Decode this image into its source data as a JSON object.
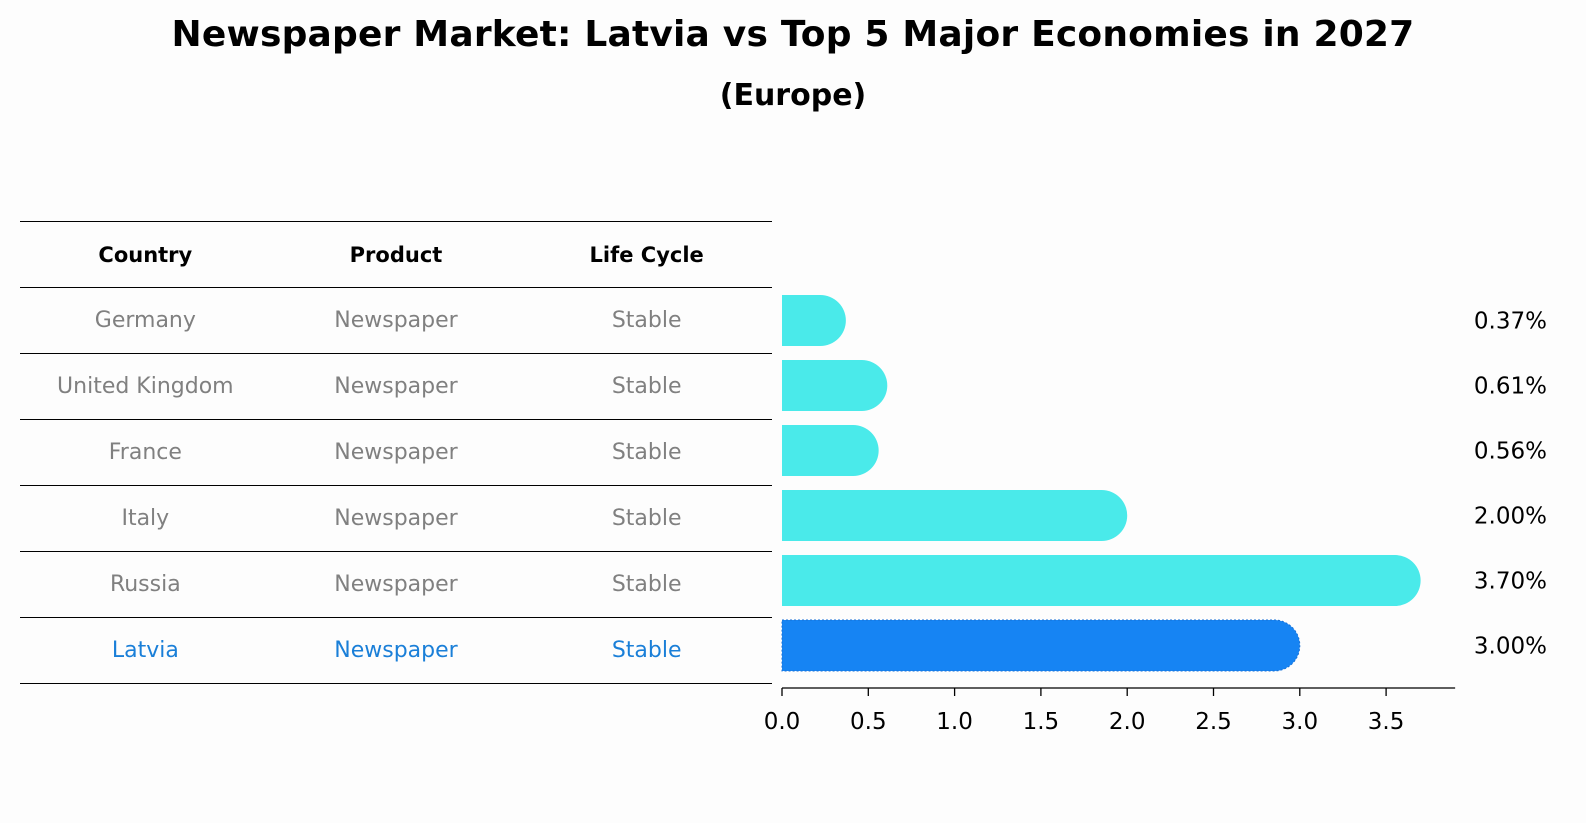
{
  "title": "Newspaper Market: Latvia vs Top 5 Major Economies in 2027",
  "subtitle": "(Europe)",
  "table": {
    "headers": [
      "Country",
      "Product",
      "Life Cycle"
    ],
    "rows": [
      {
        "country": "Germany",
        "product": "Newspaper",
        "life_cycle": "Stable"
      },
      {
        "country": "United Kingdom",
        "product": "Newspaper",
        "life_cycle": "Stable"
      },
      {
        "country": "France",
        "product": "Newspaper",
        "life_cycle": "Stable"
      },
      {
        "country": "Italy",
        "product": "Newspaper",
        "life_cycle": "Stable"
      },
      {
        "country": "Russia",
        "product": "Newspaper",
        "life_cycle": "Stable"
      },
      {
        "country": "Latvia",
        "product": "Newspaper",
        "life_cycle": "Stable"
      }
    ],
    "highlight_row": "Latvia"
  },
  "colors": {
    "bar": "#4aeaea",
    "highlight_bar": "#1684f3",
    "table_text": "#808080",
    "highlight_text": "#1a7fd8"
  },
  "chart_data": {
    "type": "bar",
    "orientation": "horizontal",
    "categories": [
      "Germany",
      "United Kingdom",
      "France",
      "Italy",
      "Russia",
      "Latvia"
    ],
    "values": [
      0.37,
      0.61,
      0.56,
      2.0,
      3.7,
      3.0
    ],
    "value_labels": [
      "0.37%",
      "0.61%",
      "0.56%",
      "2.00%",
      "3.70%",
      "3.00%"
    ],
    "xlim": [
      0,
      3.9
    ],
    "xticks": [
      0.0,
      0.5,
      1.0,
      1.5,
      2.0,
      2.5,
      3.0,
      3.5
    ],
    "xtick_labels": [
      "0.0",
      "0.5",
      "1.0",
      "1.5",
      "2.0",
      "2.5",
      "3.0",
      "3.5"
    ],
    "highlight": "Latvia",
    "grid": false
  }
}
